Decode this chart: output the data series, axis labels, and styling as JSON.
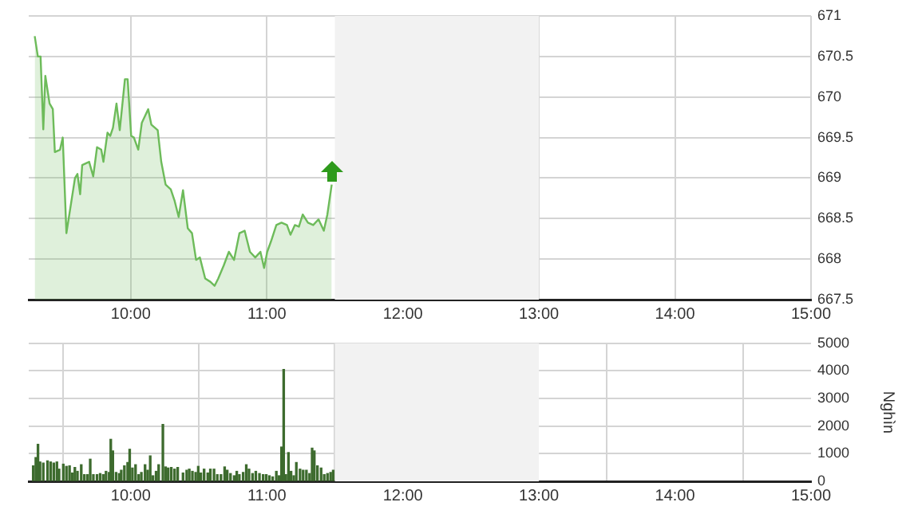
{
  "chart_data": [
    {
      "type": "area",
      "color": "#6dbb5a",
      "xlim": [
        9.25,
        15
      ],
      "xticks": [
        {
          "value": 10,
          "label": "10:00"
        },
        {
          "value": 11,
          "label": "11:00"
        },
        {
          "value": 12,
          "label": "12:00"
        },
        {
          "value": 13,
          "label": "13:00"
        },
        {
          "value": 14,
          "label": "14:00"
        },
        {
          "value": 15,
          "label": "15:00"
        }
      ],
      "ylim": [
        667.5,
        671
      ],
      "yticks": [
        667.5,
        668,
        668.5,
        669,
        669.5,
        670,
        670.5,
        671
      ],
      "grid": true,
      "bands": [
        {
          "axis": "x",
          "from": 11.5,
          "to": 13,
          "color": "#f2f2f2"
        }
      ],
      "x": [
        9.294,
        9.317,
        9.337,
        9.357,
        9.372,
        9.403,
        9.427,
        9.442,
        9.48,
        9.5,
        9.527,
        9.59,
        9.608,
        9.628,
        9.643,
        9.694,
        9.724,
        9.752,
        9.783,
        9.799,
        9.829,
        9.849,
        9.869,
        9.895,
        9.919,
        9.957,
        9.977,
        10.003,
        10.023,
        10.055,
        10.081,
        10.128,
        10.151,
        10.198,
        10.224,
        10.256,
        10.294,
        10.322,
        10.352,
        10.384,
        10.419,
        10.45,
        10.48,
        10.508,
        10.547,
        10.585,
        10.616,
        10.643,
        10.683,
        10.721,
        10.759,
        10.799,
        10.837,
        10.876,
        10.915,
        10.953,
        10.98,
        11.003,
        11.031,
        11.07,
        11.108,
        11.148,
        11.174,
        11.206,
        11.236,
        11.264,
        11.302,
        11.341,
        11.38,
        11.419,
        11.445,
        11.477
      ],
      "values": [
        670.75,
        670.5,
        670.5,
        669.6,
        670.26,
        669.92,
        669.85,
        669.32,
        669.35,
        669.5,
        668.32,
        669.0,
        669.05,
        668.8,
        669.16,
        669.2,
        669.02,
        669.38,
        669.35,
        669.2,
        669.56,
        669.52,
        669.62,
        669.92,
        669.59,
        670.22,
        670.22,
        669.52,
        669.5,
        669.35,
        669.68,
        669.85,
        669.66,
        669.59,
        669.2,
        668.92,
        668.86,
        668.72,
        668.52,
        668.85,
        668.38,
        668.32,
        667.99,
        668.02,
        667.76,
        667.72,
        667.67,
        667.76,
        667.92,
        668.09,
        667.99,
        668.32,
        668.35,
        668.09,
        668.02,
        668.09,
        667.89,
        668.09,
        668.22,
        668.42,
        668.45,
        668.42,
        668.3,
        668.42,
        668.4,
        668.55,
        668.45,
        668.42,
        668.49,
        668.35,
        668.55,
        668.92
      ]
    },
    {
      "type": "bar",
      "color": "#3d6b2e",
      "ylabel": "Nghìn",
      "xlim": [
        9.25,
        15
      ],
      "xticks": [
        {
          "value": 10,
          "label": "10:00"
        },
        {
          "value": 11,
          "label": "11:00"
        },
        {
          "value": 12,
          "label": "12:00"
        },
        {
          "value": 13,
          "label": "13:00"
        },
        {
          "value": 14,
          "label": "14:00"
        },
        {
          "value": 15,
          "label": "15:00"
        }
      ],
      "ylim": [
        0,
        5000
      ],
      "yticks": [
        0,
        1000,
        2000,
        3000,
        4000,
        5000
      ],
      "grid": true,
      "bands": [
        {
          "axis": "x",
          "from": 11.5,
          "to": 13,
          "color": "#f2f2f2"
        }
      ],
      "x": [
        9.283,
        9.302,
        9.318,
        9.333,
        9.357,
        9.388,
        9.411,
        9.434,
        9.457,
        9.473,
        9.504,
        9.527,
        9.55,
        9.57,
        9.589,
        9.608,
        9.636,
        9.659,
        9.682,
        9.702,
        9.725,
        9.752,
        9.775,
        9.798,
        9.818,
        9.841,
        9.853,
        9.868,
        9.892,
        9.915,
        9.93,
        9.953,
        9.977,
        9.992,
        10.012,
        10.035,
        10.058,
        10.078,
        10.105,
        10.124,
        10.143,
        10.163,
        10.186,
        10.205,
        10.236,
        10.256,
        10.275,
        10.298,
        10.322,
        10.345,
        10.384,
        10.411,
        10.43,
        10.453,
        10.477,
        10.496,
        10.515,
        10.539,
        10.566,
        10.585,
        10.612,
        10.636,
        10.663,
        10.69,
        10.709,
        10.733,
        10.76,
        10.779,
        10.798,
        10.826,
        10.849,
        10.869,
        10.895,
        10.919,
        10.946,
        10.973,
        10.996,
        11.019,
        11.043,
        11.07,
        11.09,
        11.108,
        11.124,
        11.14,
        11.159,
        11.178,
        11.198,
        11.217,
        11.244,
        11.267,
        11.291,
        11.314,
        11.333,
        11.349,
        11.372,
        11.399,
        11.422,
        11.446,
        11.469,
        11.488
      ],
      "values": [
        560,
        860,
        1340,
        700,
        660,
        740,
        700,
        660,
        700,
        440,
        620,
        540,
        560,
        300,
        500,
        360,
        600,
        240,
        240,
        800,
        240,
        240,
        280,
        240,
        360,
        320,
        1520,
        1100,
        320,
        280,
        400,
        560,
        680,
        1160,
        480,
        600,
        240,
        320,
        600,
        400,
        920,
        200,
        360,
        600,
        2060,
        520,
        480,
        500,
        440,
        500,
        300,
        400,
        440,
        360,
        320,
        540,
        300,
        440,
        300,
        440,
        440,
        240,
        240,
        520,
        400,
        280,
        200,
        360,
        240,
        320,
        600,
        440,
        280,
        360,
        280,
        240,
        240,
        200,
        160,
        360,
        200,
        1240,
        4050,
        240,
        1040,
        360,
        200,
        680,
        440,
        400,
        400,
        280,
        1200,
        1100,
        560,
        480,
        240,
        280,
        320,
        400
      ]
    }
  ]
}
